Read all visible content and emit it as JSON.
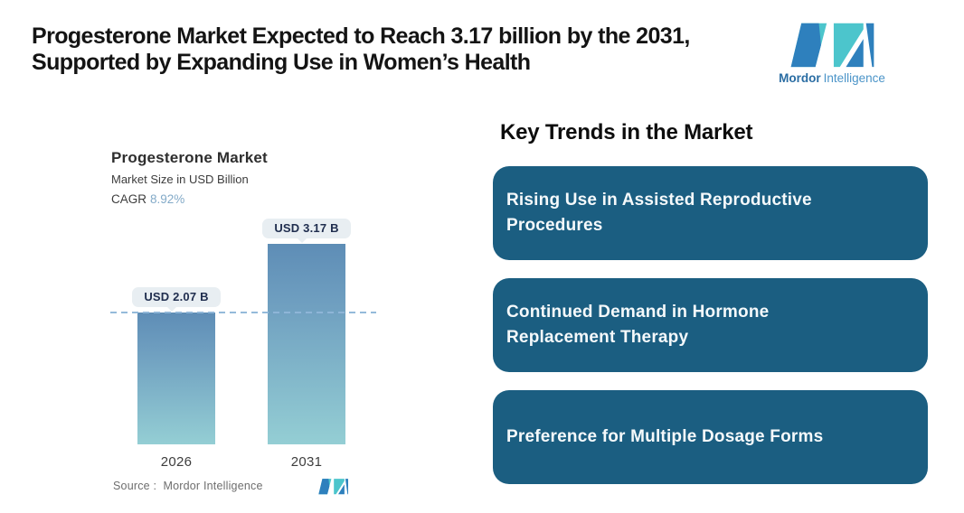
{
  "header": {
    "title_line1": "Progesterone Market Expected to Reach 3.17 billion by the 2031,",
    "title_line2": "Supported by Expanding Use in Women’s Health",
    "logo": {
      "brand_bold": "Mordor",
      "brand_light": "Intelligence"
    }
  },
  "chart_data": {
    "type": "bar",
    "title": "Progesterone Market",
    "subtitle": "Market Size in USD Billion",
    "cagr_label": "CAGR",
    "cagr_value": "8.92%",
    "categories": [
      "2026",
      "2031"
    ],
    "values": [
      2.07,
      3.17
    ],
    "value_labels": [
      "USD 2.07 B",
      "USD 3.17 B"
    ],
    "unit": "USD Billion",
    "ylim": [
      0,
      3.4
    ],
    "reference_dash_value": 2.07,
    "legend": "none",
    "grid": "off",
    "source_label": "Source :  Mordor Intelligence"
  },
  "trends": {
    "heading": "Key Trends in the Market",
    "items": [
      {
        "label": "Rising Use in Assisted Reproductive Procedures"
      },
      {
        "label": "Continued Demand in Hormone Replacement Therapy"
      },
      {
        "label": "Preference for Multiple Dosage Forms"
      }
    ]
  },
  "colors": {
    "accent_teal": "#4cc5cc",
    "accent_blue": "#2e80bd",
    "box_bg": "#1b5e81",
    "bar_top": "#5e8db6",
    "bar_bottom": "#94ced4",
    "badge_bg": "#e8eef2",
    "badge_text": "#1f2d4e",
    "dash_line": "#8fb6d8",
    "cagr_value_color": "#83aac8",
    "brand_bold_color": "#2a6da3",
    "brand_light_color": "#4b94c8"
  }
}
